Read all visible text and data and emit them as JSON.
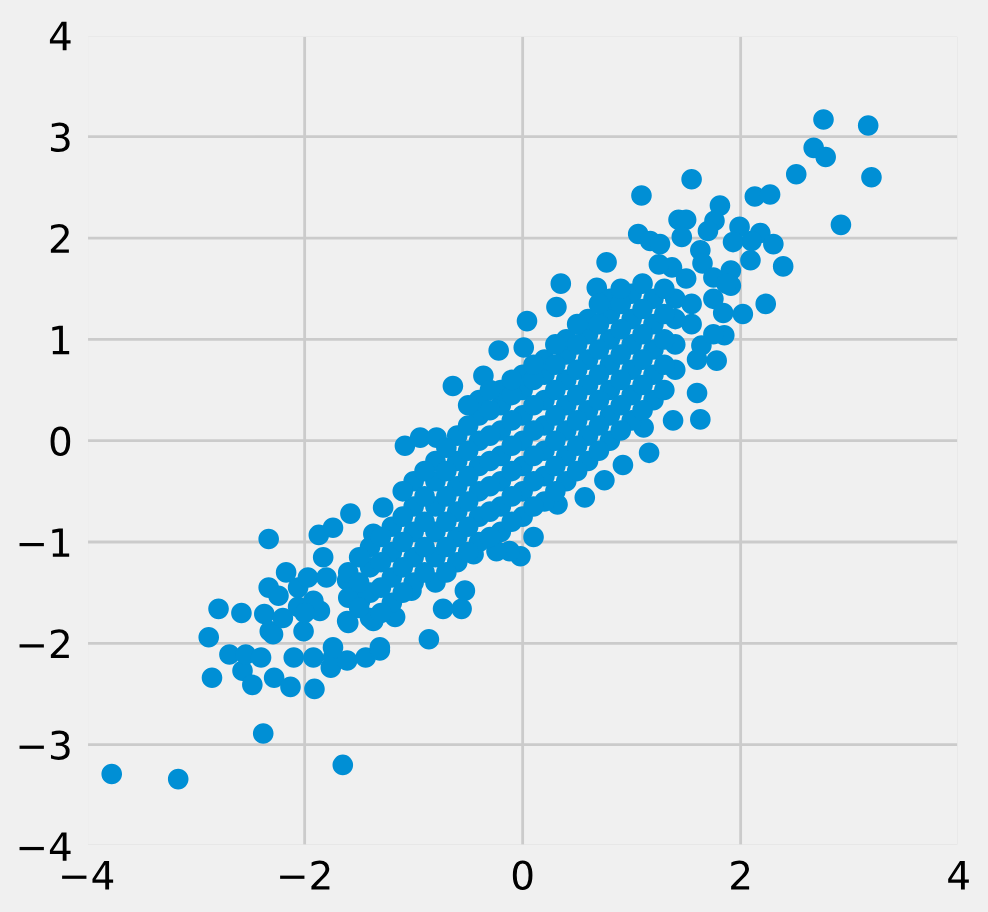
{
  "chart_data": {
    "type": "scatter",
    "color": "#008fd5",
    "marker": "circle",
    "grid": true,
    "xlim": [
      -4,
      4
    ],
    "ylim": [
      -4,
      4
    ],
    "xticks": [
      {
        "value": -4,
        "label": "−4"
      },
      {
        "value": -2,
        "label": "−2"
      },
      0,
      2,
      4
    ],
    "yticks": [
      {
        "value": -4,
        "label": "−4"
      },
      {
        "value": -3,
        "label": "−3"
      },
      {
        "value": -2,
        "label": "−2"
      },
      {
        "value": -1,
        "label": "−1"
      },
      0,
      1,
      2,
      3,
      4
    ],
    "x": [
      -3.77,
      -3.16,
      -1.65,
      -2.38,
      -0.86,
      -2.88,
      -2.85,
      -2.79,
      -2.58,
      -2.69,
      -2.57,
      -2.48,
      -2.54,
      -2.4,
      -2.28,
      -2.13,
      -1.91,
      -2.33,
      -2.37,
      -2.33,
      -2.24,
      -2.17,
      -2.06,
      -2.06,
      -2.32,
      -2.1,
      -1.92,
      -1.74,
      -1.76,
      -1.61,
      -1.44,
      -1.31,
      -2.01,
      -1.87,
      -1.74,
      -1.58,
      -1.97,
      -1.83,
      -1.86,
      -1.61,
      -1.37,
      -1.28,
      -1.08,
      -0.94,
      -0.79,
      -1.17,
      -1.02,
      -0.73,
      -0.56,
      -0.53,
      -0.64,
      -0.36,
      -0.22,
      0.04,
      0.01,
      0.35,
      0.31,
      0.77,
      0.68,
      1.09,
      1.06,
      1.17,
      1.26,
      1.55,
      1.43,
      1.5,
      1.46,
      1.63,
      1.81,
      1.76,
      1.7,
      1.99,
      2.13,
      2.27,
      2.18,
      2.1,
      2.3,
      1.93,
      2.09,
      2.39,
      1.91,
      1.91,
      2.23,
      2.02,
      1.85,
      1.78,
      1.64,
      1.6,
      1.6,
      1.63,
      1.38,
      1.11,
      1.16,
      0.92,
      0.75,
      0.57,
      0.32,
      0.1,
      -0.02,
      -0.12,
      -0.24,
      -0.45,
      2.51,
      2.76,
      3.17,
      2.67,
      2.78,
      3.2,
      2.92,
      1.37,
      1.25,
      1.5,
      1.65,
      1.55,
      1.75,
      1.84,
      1.75,
      1.87,
      1.75,
      1.55,
      -2.29,
      -1.92,
      -1.74,
      -1.61,
      -1.49,
      -1.31,
      -1.37,
      -2.2,
      -2.0,
      -1.8,
      -1.6,
      -1.6,
      -1.6,
      -1.4,
      -1.4,
      -1.4,
      -1.4,
      -1.2,
      -1.2,
      -1.2,
      -1.2,
      -1.0,
      -1.0,
      -1.0,
      -1.0,
      -1.0,
      -0.8,
      -0.8,
      -0.8,
      -0.8,
      -0.8,
      -0.8,
      -0.6,
      -0.6,
      -0.6,
      -0.6,
      -0.6,
      -0.6,
      -0.4,
      -0.4,
      -0.4,
      -0.4,
      -0.4,
      -0.4,
      -0.4,
      -0.2,
      -0.2,
      -0.2,
      -0.2,
      -0.2,
      -0.2,
      -0.2,
      0.0,
      0.0,
      0.0,
      0.0,
      0.0,
      0.0,
      0.0,
      0.2,
      0.2,
      0.2,
      0.2,
      0.2,
      0.2,
      0.2,
      0.4,
      0.4,
      0.4,
      0.4,
      0.4,
      0.4,
      0.4,
      0.6,
      0.6,
      0.6,
      0.6,
      0.6,
      0.6,
      0.6,
      0.8,
      0.8,
      0.8,
      0.8,
      0.8,
      0.8,
      0.8,
      1.0,
      1.0,
      1.0,
      1.0,
      1.0,
      1.0,
      1.2,
      1.2,
      1.2,
      1.2,
      1.2,
      1.4,
      1.4,
      1.4,
      1.4,
      -1.5,
      -1.5,
      -1.5,
      -1.3,
      -1.3,
      -1.3,
      -1.3,
      -1.1,
      -1.1,
      -1.1,
      -1.1,
      -1.1,
      -0.9,
      -0.9,
      -0.9,
      -0.9,
      -0.9,
      -0.7,
      -0.7,
      -0.7,
      -0.7,
      -0.7,
      -0.7,
      -0.5,
      -0.5,
      -0.5,
      -0.5,
      -0.5,
      -0.5,
      -0.5,
      -0.3,
      -0.3,
      -0.3,
      -0.3,
      -0.3,
      -0.3,
      -0.3,
      -0.1,
      -0.1,
      -0.1,
      -0.1,
      -0.1,
      -0.1,
      -0.1,
      0.1,
      0.1,
      0.1,
      0.1,
      0.1,
      0.1,
      0.1,
      0.3,
      0.3,
      0.3,
      0.3,
      0.3,
      0.3,
      0.3,
      0.5,
      0.5,
      0.5,
      0.5,
      0.5,
      0.5,
      0.5,
      0.7,
      0.7,
      0.7,
      0.7,
      0.7,
      0.7,
      0.7,
      0.9,
      0.9,
      0.9,
      0.9,
      0.9,
      0.9,
      0.9,
      1.1,
      1.1,
      1.1,
      1.1,
      1.1,
      1.1,
      1.3,
      1.3,
      1.3,
      1.3,
      1.3
    ],
    "values": [
      -3.29,
      -3.34,
      -3.2,
      -2.89,
      -1.96,
      -1.94,
      -2.34,
      -1.66,
      -1.7,
      -2.11,
      -2.27,
      -2.41,
      -2.11,
      -2.14,
      -2.34,
      -2.43,
      -2.45,
      -0.97,
      -1.71,
      -1.45,
      -1.53,
      -1.3,
      -1.45,
      -1.64,
      -1.88,
      -2.14,
      -2.14,
      -2.14,
      -2.24,
      -2.17,
      -2.14,
      -2.07,
      -1.88,
      -0.93,
      -0.86,
      -0.72,
      -1.35,
      -1.15,
      -1.68,
      -1.38,
      -0.92,
      -0.66,
      -0.05,
      0.03,
      0.03,
      -1.74,
      -1.48,
      -1.66,
      -1.66,
      -1.48,
      0.54,
      0.64,
      0.89,
      1.18,
      0.92,
      1.55,
      1.32,
      1.76,
      1.51,
      2.42,
      2.04,
      1.97,
      1.94,
      2.58,
      2.18,
      2.18,
      2.01,
      1.88,
      2.32,
      2.17,
      2.07,
      2.11,
      2.41,
      2.43,
      2.05,
      1.97,
      1.94,
      1.96,
      1.78,
      1.72,
      1.68,
      1.53,
      1.35,
      1.25,
      1.04,
      0.79,
      0.94,
      0.8,
      0.47,
      0.21,
      0.2,
      0.13,
      -0.12,
      -0.24,
      -0.39,
      -0.56,
      -0.63,
      -0.95,
      -1.14,
      -1.09,
      -1.09,
      -1.12,
      2.63,
      3.17,
      3.11,
      2.89,
      2.8,
      2.6,
      2.13,
      1.71,
      1.74,
      1.6,
      1.75,
      1.35,
      1.4,
      1.26,
      1.61,
      1.55,
      1.05,
      1.15,
      -1.91,
      -1.58,
      -2.04,
      -1.78,
      -1.58,
      -2.04,
      -1.78,
      -1.75,
      -1.7,
      -1.35,
      -1.8,
      -1.55,
      -1.3,
      -1.75,
      -1.5,
      -1.25,
      -1.05,
      -1.6,
      -1.35,
      -1.1,
      -0.85,
      -1.4,
      -1.15,
      -0.9,
      -0.65,
      -0.4,
      -1.4,
      -1.15,
      -0.9,
      -0.65,
      -0.4,
      -0.2,
      -1.2,
      -0.95,
      -0.7,
      -0.45,
      -0.2,
      0.05,
      -1.0,
      -0.75,
      -0.5,
      -0.25,
      0.0,
      0.25,
      0.4,
      -0.9,
      -0.65,
      -0.4,
      -0.15,
      0.1,
      0.35,
      0.5,
      -0.75,
      -0.5,
      -0.25,
      0.0,
      0.25,
      0.5,
      0.65,
      -0.6,
      -0.35,
      -0.1,
      0.15,
      0.4,
      0.65,
      0.8,
      -0.4,
      -0.15,
      0.1,
      0.35,
      0.6,
      0.85,
      1.0,
      -0.2,
      0.05,
      0.3,
      0.55,
      0.8,
      1.05,
      1.2,
      0.0,
      0.25,
      0.5,
      0.75,
      1.0,
      1.25,
      1.4,
      0.2,
      0.45,
      0.7,
      0.95,
      1.2,
      1.45,
      0.4,
      0.65,
      0.9,
      1.15,
      1.4,
      0.7,
      0.95,
      1.2,
      1.4,
      -1.65,
      -1.4,
      -1.15,
      -1.7,
      -1.45,
      -1.2,
      -0.95,
      -1.5,
      -1.25,
      -1.0,
      -0.75,
      -0.5,
      -1.3,
      -1.05,
      -0.8,
      -0.55,
      -0.3,
      -1.3,
      -1.05,
      -0.8,
      -0.55,
      -0.3,
      -0.07,
      -1.1,
      -0.85,
      -0.6,
      -0.35,
      -0.1,
      0.15,
      0.35,
      -0.95,
      -0.7,
      -0.45,
      -0.2,
      0.05,
      0.3,
      0.5,
      -0.8,
      -0.55,
      -0.3,
      -0.05,
      0.2,
      0.45,
      0.6,
      -0.65,
      -0.4,
      -0.15,
      0.1,
      0.35,
      0.6,
      0.75,
      -0.5,
      -0.25,
      0.0,
      0.25,
      0.5,
      0.75,
      0.95,
      -0.3,
      -0.05,
      0.2,
      0.45,
      0.7,
      0.95,
      1.15,
      -0.1,
      0.15,
      0.4,
      0.65,
      0.9,
      1.15,
      1.35,
      0.1,
      0.35,
      0.6,
      0.85,
      1.1,
      1.35,
      1.5,
      0.3,
      0.55,
      0.8,
      1.05,
      1.3,
      1.55,
      0.5,
      0.75,
      1.0,
      1.25,
      1.5
    ]
  }
}
